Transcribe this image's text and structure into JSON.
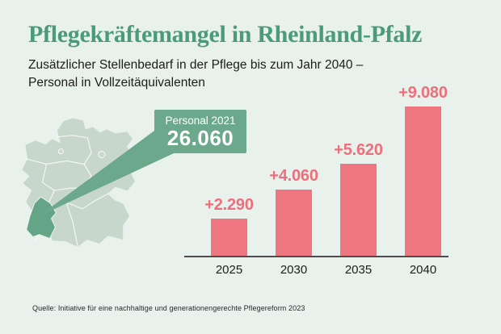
{
  "header": {
    "title": "Pflegekräftemangel in Rheinland-Pfalz",
    "subtitle_line1": "Zusätzlicher Stellenbedarf in der Pflege bis zum Jahr 2040 –",
    "subtitle_line2": "Personal in Vollzeitäquivalenten"
  },
  "callout": {
    "label": "Personal 2021",
    "value": "26.060"
  },
  "chart_data": {
    "type": "bar",
    "categories": [
      "2025",
      "2030",
      "2035",
      "2040"
    ],
    "values": [
      2290,
      4060,
      5620,
      9080
    ],
    "value_labels": [
      "+2.290",
      "+4.060",
      "+5.620",
      "+9.080"
    ],
    "title": "Pflegekräftemangel in Rheinland-Pfalz",
    "xlabel": "",
    "ylabel": "",
    "ylim": [
      0,
      9080
    ],
    "grid": false,
    "legend": false,
    "bar_color": "#ee7681",
    "label_color": "#ed6f7c"
  },
  "source": "Quelle: Initiative für eine nachhaltige und generationengerechte Pflegereform 2023",
  "colors": {
    "background": "#e9f1ec",
    "title_green": "#4a9a7b",
    "callout_green": "#6ba88c",
    "map_base": "#c7d7cb",
    "map_highlight": "#64a487",
    "bar_red": "#ee7681",
    "axis": "#4d4d4d",
    "text_dark": "#1d1d1b"
  }
}
